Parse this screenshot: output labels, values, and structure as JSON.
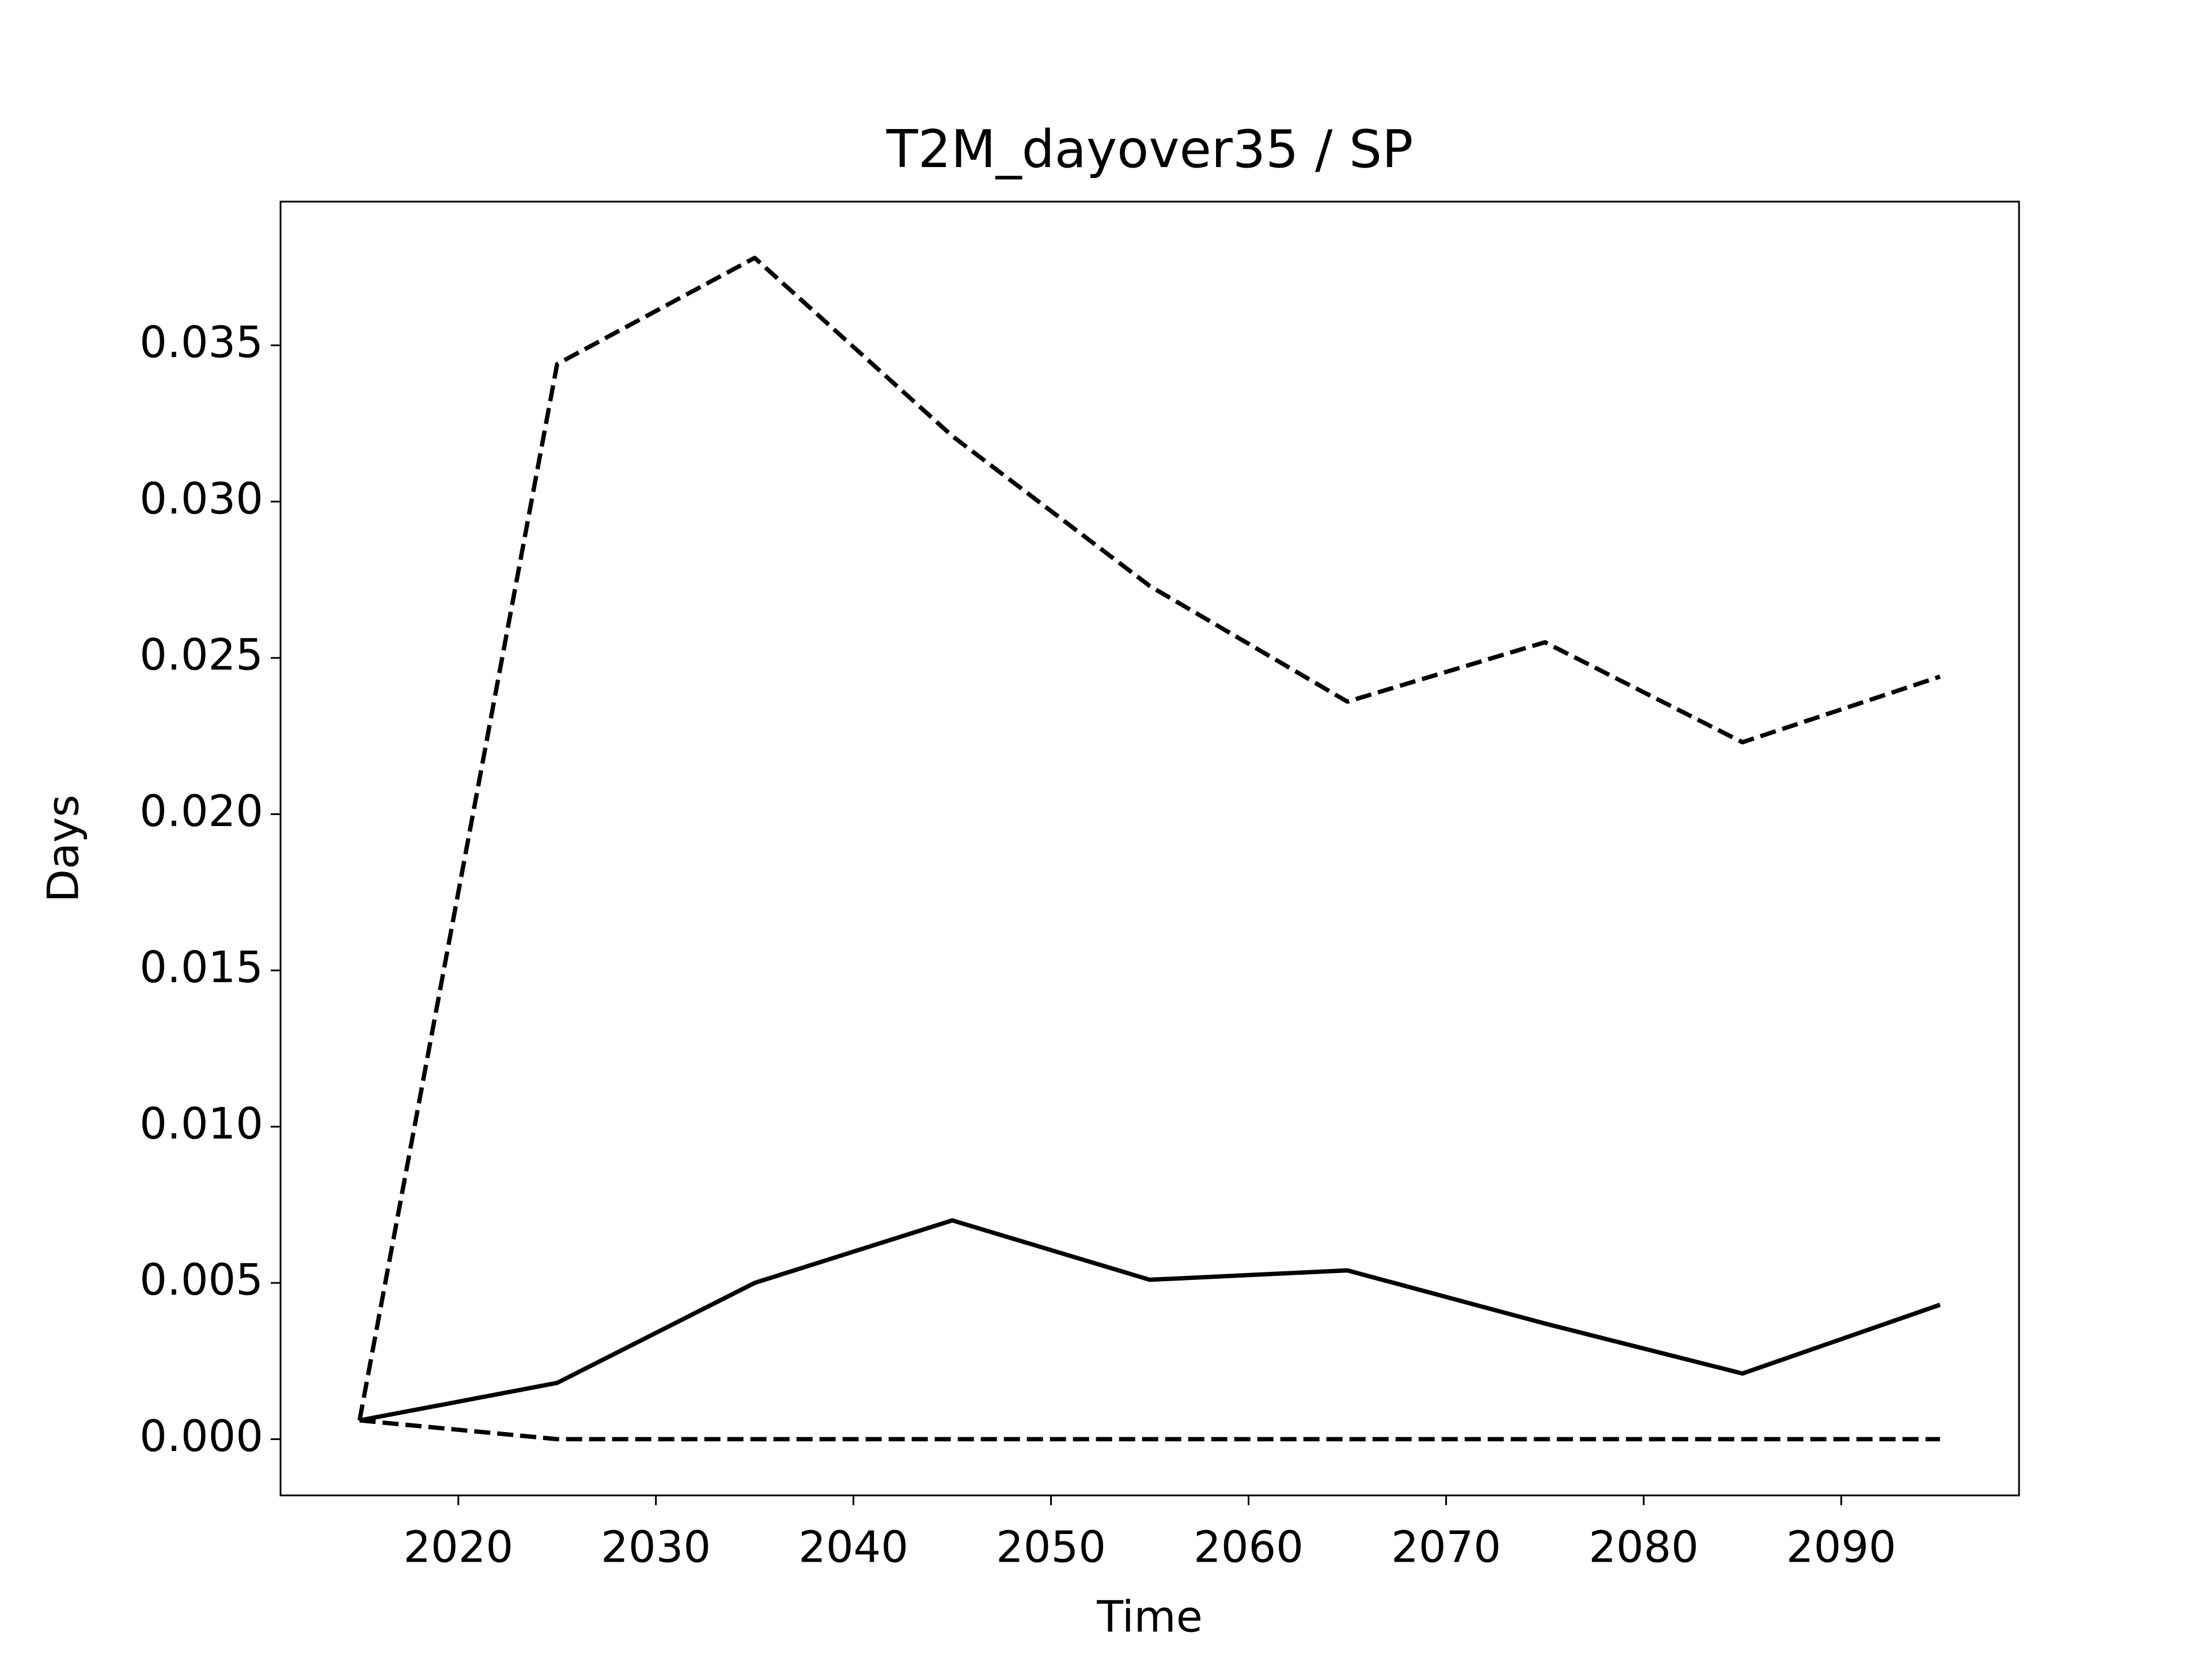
{
  "chart_data": {
    "type": "line",
    "title": "T2M_dayover35 / SP",
    "x_label": "Time",
    "y_label": "Days",
    "x": [
      2015,
      2025,
      2035,
      2045,
      2055,
      2065,
      2075,
      2085,
      2095
    ],
    "series": [
      {
        "color": "#000000",
        "line_style": "solid",
        "values": [
          0.0006,
          0.0018,
          0.005,
          0.007,
          0.0051,
          0.0054,
          0.0037,
          0.0021,
          0.0043
        ]
      },
      {
        "color": "#000000",
        "line_style": "dashed",
        "values": [
          0.0006,
          0.0344,
          0.0378,
          0.0321,
          0.0273,
          0.0236,
          0.0255,
          0.0223,
          0.0244
        ]
      },
      {
        "color": "#000000",
        "line_style": "dashed",
        "values": [
          0.0006,
          0,
          0,
          0,
          0,
          0,
          0,
          0,
          0
        ]
      }
    ],
    "xlim": [
      2011,
      2099
    ],
    "xticks": [
      2020,
      2030,
      2040,
      2050,
      2060,
      2070,
      2080,
      2090
    ],
    "ylim": [
      -0.0018,
      0.0396
    ],
    "yticks": [
      {
        "value": 0,
        "label": "0.000"
      },
      {
        "value": 0.005,
        "label": "0.005"
      },
      {
        "value": 0.01,
        "label": "0.010"
      },
      {
        "value": 0.015,
        "label": "0.015"
      },
      {
        "value": 0.02,
        "label": "0.020"
      },
      {
        "value": 0.025,
        "label": "0.025"
      },
      {
        "value": 0.03,
        "label": "0.030"
      },
      {
        "value": 0.035,
        "label": "0.035"
      }
    ],
    "grid": false
  }
}
